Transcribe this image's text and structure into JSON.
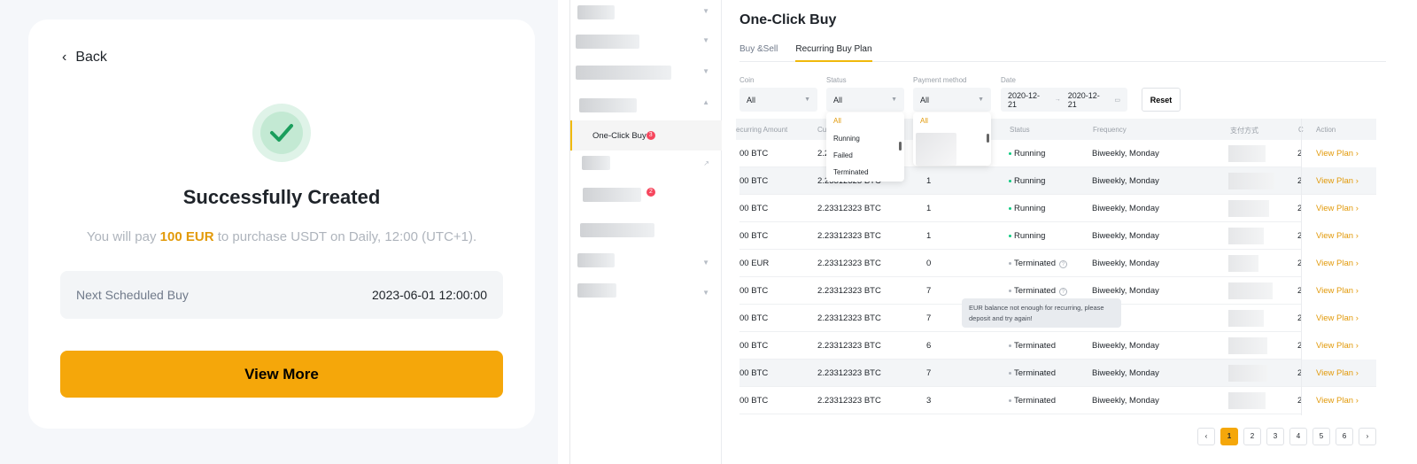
{
  "success": {
    "back": "Back",
    "title": "Successfully Created",
    "sub_pre": "You will pay ",
    "amount": "100 EUR",
    "sub_post": " to purchase USDT on Daily, 12:00 (UTC+1).",
    "sched_label": "Next Scheduled Buy",
    "sched_value": "2023-06-01 12:00:00",
    "view_more": "View More"
  },
  "sidebar": {
    "active": "One-Click Buy",
    "active_badge": "3",
    "other_badge": "2"
  },
  "page": {
    "title": "One-Click Buy",
    "tabs": [
      "Buy &Sell",
      "Recurring Buy Plan"
    ]
  },
  "filters": {
    "coin_label": "Coin",
    "coin": "All",
    "status_label": "Status",
    "status": "All",
    "pay_label": "Payment method",
    "pay": "All",
    "date_label": "Date",
    "date_from": "2020-12-21",
    "date_to": "2020-12-21",
    "reset": "Reset"
  },
  "status_dropdown": [
    "All",
    "Running",
    "Failed",
    "Terminated"
  ],
  "pay_dropdown": [
    "All"
  ],
  "columns": [
    "ecurring Amount",
    "Cu",
    "Status",
    "Frequency",
    "支付方式",
    "C",
    "Action"
  ],
  "rows": [
    {
      "amount": "00 BTC",
      "cur": "2.2",
      "n": "",
      "status": "Running",
      "freq": "Biweekly, Monday",
      "d": "2("
    },
    {
      "amount": "00 BTC",
      "cur": "2.23312323 BTC",
      "n": "1",
      "status": "Running",
      "freq": "Biweekly, Monday",
      "d": "2("
    },
    {
      "amount": "00 BTC",
      "cur": "2.23312323 BTC",
      "n": "1",
      "status": "Running",
      "freq": "Biweekly, Monday",
      "d": "2("
    },
    {
      "amount": "00 BTC",
      "cur": "2.23312323 BTC",
      "n": "1",
      "status": "Running",
      "freq": "Biweekly, Monday",
      "d": "2("
    },
    {
      "amount": "00 EUR",
      "cur": "2.23312323 BTC",
      "n": "0",
      "status": "Terminated",
      "freq": "Biweekly, Monday",
      "d": "2("
    },
    {
      "amount": "00 BTC",
      "cur": "2.23312323 BTC",
      "n": "7",
      "status": "Terminated",
      "freq": "Biweekly, Monday",
      "d": "2("
    },
    {
      "amount": "00 BTC",
      "cur": "2.23312323 BTC",
      "n": "7",
      "status": "",
      "freq": "y, Monday",
      "d": "2("
    },
    {
      "amount": "00 BTC",
      "cur": "2.23312323 BTC",
      "n": "6",
      "status": "Terminated",
      "freq": "Biweekly, Monday",
      "d": "2("
    },
    {
      "amount": "00 BTC",
      "cur": "2.23312323 BTC",
      "n": "7",
      "status": "Terminated",
      "freq": "Biweekly, Monday",
      "d": "2("
    },
    {
      "amount": "00 BTC",
      "cur": "2.23312323 BTC",
      "n": "3",
      "status": "Terminated",
      "freq": "Biweekly, Monday",
      "d": "2("
    }
  ],
  "view_plan": "View Plan",
  "tooltip": "EUR balance not enough for recurring, please deposit and try again!",
  "pagination": {
    "pages": [
      "1",
      "2",
      "3",
      "4",
      "5",
      "6"
    ],
    "current": "1"
  },
  "colors": {
    "accent": "#f5a70a",
    "running": "#0ecb81",
    "terminated": "#aeb4bc"
  }
}
